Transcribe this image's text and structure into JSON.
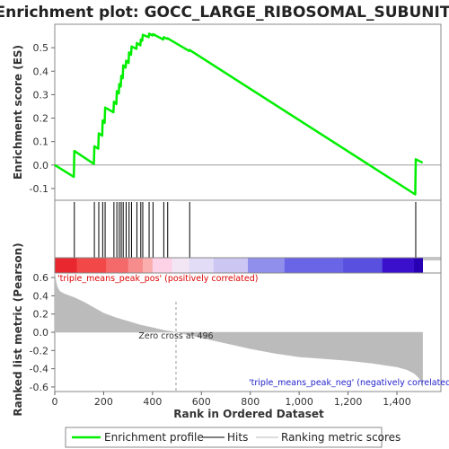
{
  "chart_data": {
    "type": "line",
    "title": "Enrichment plot: GOCC_LARGE_RIBOSOMAL_SUBUNIT",
    "es_panel": {
      "ylabel": "Enrichment score (ES)",
      "ylim": [
        -0.15,
        0.6
      ],
      "yticks": [
        -0.1,
        0.0,
        0.1,
        0.2,
        0.3,
        0.4,
        0.5
      ],
      "ytick_labels": [
        "-0.1",
        "0.0",
        "0.1",
        "0.2",
        "0.3",
        "0.4",
        "0.5"
      ],
      "series": [
        {
          "name": "Enrichment profile",
          "color": "#00ee00",
          "x": [
            0,
            78,
            80,
            160,
            162,
            178,
            180,
            194,
            196,
            204,
            206,
            240,
            242,
            252,
            254,
            262,
            264,
            270,
            272,
            278,
            280,
            290,
            292,
            302,
            304,
            312,
            314,
            334,
            336,
            350,
            352,
            358,
            360,
            384,
            386,
            400,
            402,
            444,
            446,
            460,
            462,
            550,
            552,
            1475,
            1477,
            1505
          ],
          "y": [
            0.0,
            -0.05,
            0.06,
            0.005,
            0.08,
            0.07,
            0.135,
            0.125,
            0.19,
            0.18,
            0.245,
            0.225,
            0.27,
            0.26,
            0.315,
            0.305,
            0.345,
            0.335,
            0.38,
            0.37,
            0.425,
            0.415,
            0.445,
            0.435,
            0.48,
            0.47,
            0.505,
            0.495,
            0.52,
            0.51,
            0.535,
            0.53,
            0.555,
            0.545,
            0.56,
            0.552,
            0.558,
            0.535,
            0.545,
            0.538,
            0.54,
            0.486,
            0.49,
            -0.125,
            0.025,
            0.01
          ]
        }
      ]
    },
    "hits_panel": {
      "hit_positions": [
        80,
        162,
        180,
        196,
        206,
        242,
        254,
        264,
        272,
        280,
        292,
        304,
        314,
        336,
        352,
        360,
        386,
        402,
        446,
        462,
        552,
        1477
      ]
    },
    "rank_panel": {
      "ylabel": "Ranked list metric (Pearson)",
      "xlabel": "Rank in Ordered Dataset",
      "ylim": [
        -0.65,
        0.65
      ],
      "yticks": [
        -0.6,
        -0.4,
        -0.2,
        0.0,
        0.2,
        0.4,
        0.6
      ],
      "ytick_labels": [
        "-0.6",
        "-0.4",
        "-0.2",
        "0.0",
        "0.2",
        "0.4",
        "0.6"
      ],
      "xlim": [
        0,
        1580
      ],
      "xticks": [
        0,
        200,
        400,
        600,
        800,
        1000,
        1200,
        1400
      ],
      "xtick_labels": [
        "0",
        "200",
        "400",
        "600",
        "800",
        "1,000",
        "1,200",
        "1,400"
      ],
      "metric_x": [
        0,
        5,
        10,
        20,
        40,
        80,
        120,
        160,
        200,
        250,
        300,
        350,
        400,
        450,
        496,
        550,
        600,
        700,
        800,
        900,
        1000,
        1100,
        1200,
        1300,
        1350,
        1400,
        1440,
        1470,
        1490,
        1500,
        1505
      ],
      "metric_y": [
        0.65,
        0.55,
        0.5,
        0.45,
        0.42,
        0.38,
        0.33,
        0.27,
        0.21,
        0.16,
        0.12,
        0.08,
        0.05,
        0.02,
        0.0,
        -0.03,
        -0.06,
        -0.12,
        -0.18,
        -0.23,
        -0.27,
        -0.29,
        -0.31,
        -0.34,
        -0.36,
        -0.38,
        -0.41,
        -0.45,
        -0.5,
        -0.55,
        -0.6
      ],
      "zero_cross_label": "Zero cross at 496",
      "zero_cross_x": 496,
      "pos_label": "'triple_means_peak_pos' (positively correlated)",
      "neg_label": "'triple_means_peak_neg' (negatively correlated)",
      "pos_label_color": "#dd0000",
      "neg_label_color": "#2222cc",
      "bar_color": "#bbbbbb"
    },
    "heat_bar": {
      "segments": [
        {
          "start": 0,
          "end": 90,
          "color": "#e8282e"
        },
        {
          "start": 90,
          "end": 210,
          "color": "#f24848"
        },
        {
          "start": 210,
          "end": 300,
          "color": "#f46a6a"
        },
        {
          "start": 300,
          "end": 360,
          "color": "#f78c8c"
        },
        {
          "start": 360,
          "end": 400,
          "color": "#faaeae"
        },
        {
          "start": 400,
          "end": 480,
          "color": "#fdd2e6"
        },
        {
          "start": 480,
          "end": 550,
          "color": "#f2e6f4"
        },
        {
          "start": 550,
          "end": 650,
          "color": "#e2dcf6"
        },
        {
          "start": 650,
          "end": 790,
          "color": "#ccc6f2"
        },
        {
          "start": 790,
          "end": 940,
          "color": "#9090ec"
        },
        {
          "start": 940,
          "end": 1180,
          "color": "#6a64e6"
        },
        {
          "start": 1180,
          "end": 1340,
          "color": "#5a50e0"
        },
        {
          "start": 1340,
          "end": 1470,
          "color": "#3a10cc"
        },
        {
          "start": 1470,
          "end": 1505,
          "color": "#2800b4"
        }
      ]
    },
    "legend": {
      "items": [
        {
          "label": "Enrichment profile",
          "color": "#00ee00"
        },
        {
          "label": "Hits",
          "color": "#000000"
        },
        {
          "label": "Ranking metric scores",
          "color": "#bbbbbb"
        }
      ]
    }
  }
}
